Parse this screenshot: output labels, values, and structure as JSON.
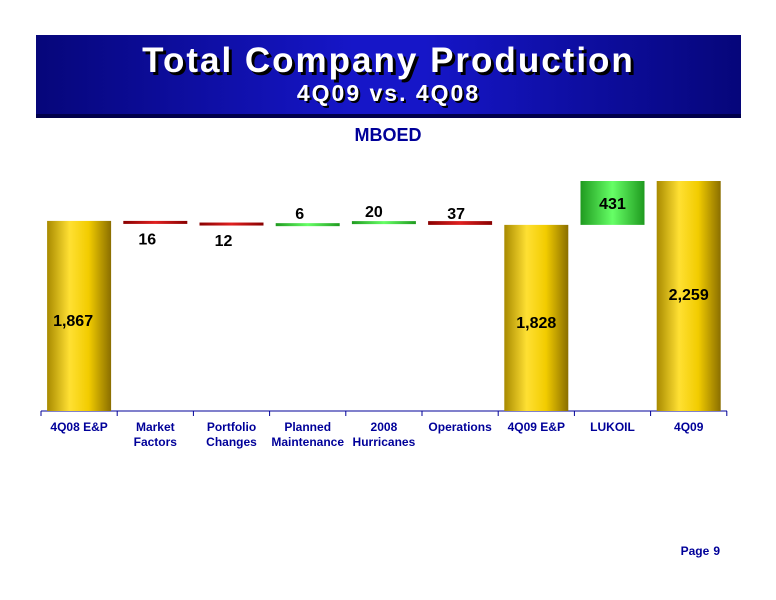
{
  "header": {
    "title": "Total Company Production",
    "subtitle": "4Q09 vs. 4Q08"
  },
  "footer": {
    "page_label": "Page",
    "page_number": "9"
  },
  "colors": {
    "banner": "#1616c8",
    "gold": "#e6c200",
    "decrease": "#cc0000",
    "increase": "#33cc33",
    "text_dark": "#000000",
    "text_blue": "#000099"
  },
  "chart_data": {
    "type": "bar",
    "subtype": "waterfall",
    "title": "MBOED",
    "categories": [
      "4Q08 E&P",
      "Market\nFactors",
      "Portfolio\nChanges",
      "Planned\nMaintenance",
      "2008\nHurricanes",
      "Operations",
      "4Q09 E&P",
      "LUKOIL",
      "4Q09"
    ],
    "steps": [
      {
        "kind": "total",
        "value": 1867,
        "label": "1,867"
      },
      {
        "kind": "decrease",
        "value": 16,
        "label": "16"
      },
      {
        "kind": "decrease",
        "value": 12,
        "label": "12"
      },
      {
        "kind": "increase",
        "value": 6,
        "label": "6"
      },
      {
        "kind": "increase",
        "value": 20,
        "label": "20"
      },
      {
        "kind": "decrease",
        "value": 37,
        "label": "37"
      },
      {
        "kind": "total",
        "value": 1828,
        "label": "1,828"
      },
      {
        "kind": "increase",
        "value": 431,
        "label": "431"
      },
      {
        "kind": "total",
        "value": 2259,
        "label": "2,259"
      }
    ],
    "ylim": [
      0,
      2259
    ],
    "grid": false,
    "legend": "none"
  }
}
